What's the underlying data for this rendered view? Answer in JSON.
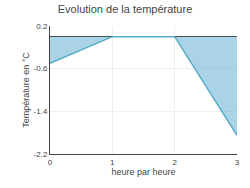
{
  "chart_data": {
    "type": "area",
    "title": "Evolution de la température",
    "xlabel": "heure par heure",
    "ylabel": "Température en °C",
    "x": [
      0,
      1,
      2,
      3
    ],
    "series": [
      {
        "values": [
          -0.5,
          0.0,
          0.0,
          -1.85
        ],
        "color": "#55aacc"
      }
    ],
    "xlim": [
      0,
      3
    ],
    "xticks": [
      0,
      1,
      2,
      3
    ],
    "ylim": [
      -2.2,
      0.2
    ],
    "yticks": [
      0.2,
      -0.6,
      -1.4,
      -2.2
    ],
    "grid": true
  }
}
